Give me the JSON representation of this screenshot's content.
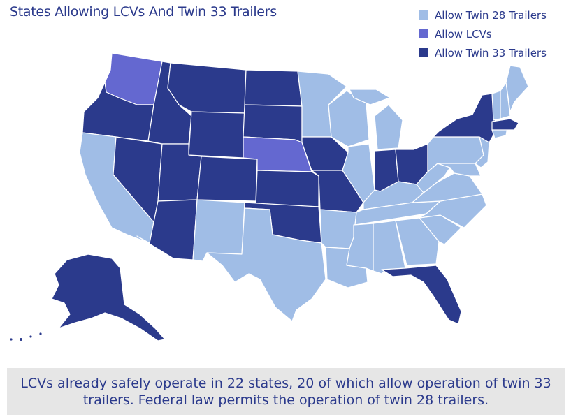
{
  "title": "States Allowing LCVs And Twin 33 Trailers",
  "legend": [
    {
      "label": "Allow Twin 28 Trailers",
      "key": "twin28",
      "color": "#a0bde6"
    },
    {
      "label": "Allow LCVs",
      "key": "lcv",
      "color": "#6468d0"
    },
    {
      "label": "Allow Twin 33 Trailers",
      "key": "twin33",
      "color": "#2b3a8c"
    }
  ],
  "caption": "LCVs already safely operate in 22 states, 20 of which allow operation of twin 33 trailers. Federal law permits the operation of twin 28 trailers."
}
